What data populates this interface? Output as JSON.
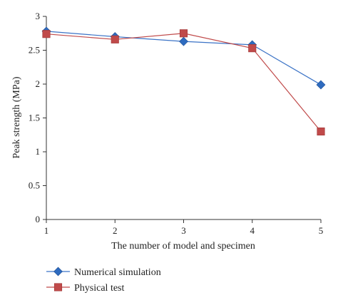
{
  "chart_data": {
    "type": "line",
    "x": [
      1,
      2,
      3,
      4,
      5
    ],
    "xlabel": "The number of model and specimen",
    "ylabel": "Peak strength (MPa)",
    "xlim": [
      1,
      5
    ],
    "ylim": [
      0,
      3
    ],
    "x_ticks": [
      "1",
      "2",
      "3",
      "4",
      "5"
    ],
    "y_ticks": [
      "0",
      "0.5",
      "1",
      "1.5",
      "2",
      "2.5",
      "3"
    ],
    "grid": false,
    "legend_position": "bottom-left",
    "series": [
      {
        "name": "Numerical simulation",
        "values": [
          2.78,
          2.7,
          2.63,
          2.58,
          1.99
        ],
        "color": "#2e6bbf",
        "line_color": "#3b73c6",
        "marker": "diamond"
      },
      {
        "name": "Physical test",
        "values": [
          2.74,
          2.66,
          2.75,
          2.53,
          1.3
        ],
        "color": "#c04a4a",
        "line_color": "#c04a4a",
        "marker": "square"
      }
    ]
  }
}
